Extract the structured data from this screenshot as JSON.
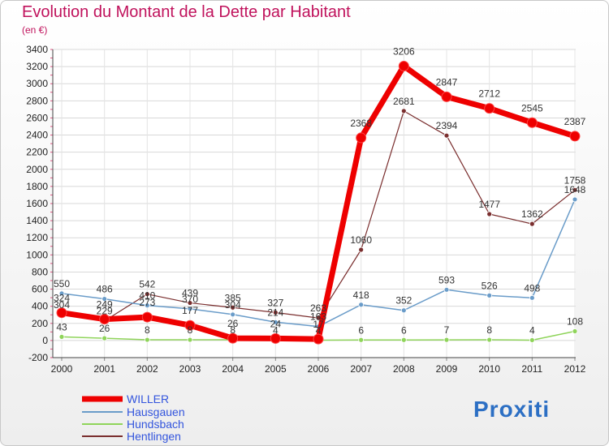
{
  "title": "Evolution du Montant de la Dette par Habitant",
  "unit_label": "(en €)",
  "logo_text": "Proxiti",
  "chart_data": {
    "type": "line",
    "title": "Evolution du Montant de la Dette par Habitant",
    "ylabel": "(en €)",
    "xlabel": "",
    "x": [
      "2000",
      "2001",
      "2002",
      "2003",
      "2004",
      "2005",
      "2006",
      "2007",
      "2008",
      "2009",
      "2010",
      "2011",
      "2012"
    ],
    "ylim": [
      -200,
      3400
    ],
    "yticks": [
      -200,
      0,
      200,
      400,
      600,
      800,
      1000,
      1200,
      1400,
      1600,
      1800,
      2000,
      2200,
      2400,
      2600,
      2800,
      3000,
      3200,
      3400
    ],
    "grid": true,
    "legend_position": "bottom-left",
    "series": [
      {
        "name": "WILLER",
        "color": "#ee0000",
        "values": [
          324,
          249,
          273,
          177,
          26,
          24,
          17,
          2368,
          3206,
          2847,
          2712,
          2545,
          2387
        ]
      },
      {
        "name": "Hausgauen",
        "color": "#6a9cc9",
        "values": [
          550,
          486,
          410,
          370,
          304,
          214,
          163,
          418,
          352,
          593,
          526,
          498,
          1648
        ]
      },
      {
        "name": "Hundsbach",
        "color": "#8fd45a",
        "values": [
          43,
          26,
          8,
          8,
          8,
          4,
          4,
          6,
          6,
          7,
          8,
          4,
          108
        ]
      },
      {
        "name": "Hentlingen",
        "color": "#7a2e2e",
        "values": [
          304,
          229,
          542,
          439,
          385,
          327,
          263,
          1060,
          2681,
          2394,
          1477,
          1362,
          1758
        ]
      }
    ]
  }
}
